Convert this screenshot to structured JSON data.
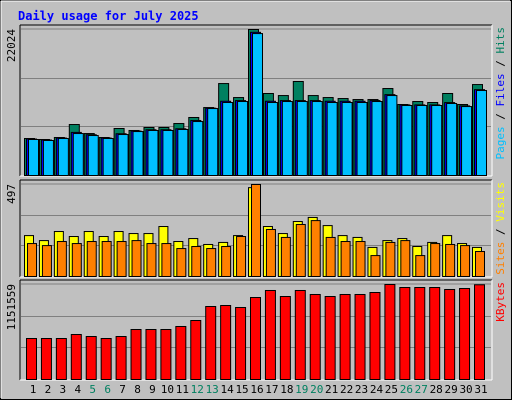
{
  "title": "Daily usage for July 2025",
  "separator": "/",
  "chart_data": [
    {
      "type": "bar",
      "ylim": [
        0,
        22024
      ],
      "yticks": [
        22024
      ],
      "series": [
        {
          "name": "Hits",
          "color": "#008060",
          "values": [
            5580,
            5430,
            5730,
            7690,
            6330,
            5730,
            7090,
            6790,
            7240,
            7240,
            7840,
            8750,
            10250,
            13870,
            11760,
            22024,
            12370,
            12060,
            14180,
            12060,
            11760,
            11610,
            11460,
            11460,
            13120,
            10710,
            11160,
            11010,
            12370,
            10710,
            13720
          ]
        },
        {
          "name": "Files",
          "color": "#0000ff",
          "values": [
            5500,
            5350,
            5650,
            6500,
            6150,
            5650,
            6300,
            6700,
            6900,
            6900,
            7050,
            8300,
            10150,
            11200,
            11300,
            21600,
            11200,
            11300,
            11300,
            11300,
            11200,
            11200,
            11200,
            11300,
            12200,
            10650,
            10650,
            10650,
            11000,
            10500,
            12950
          ]
        },
        {
          "name": "Pages",
          "color": "#00c0ff",
          "values": [
            5430,
            5280,
            5580,
            6330,
            6030,
            5580,
            6180,
            6630,
            6790,
            6790,
            6940,
            8140,
            10100,
            11010,
            11160,
            21410,
            11010,
            11160,
            11160,
            11160,
            11010,
            11010,
            11010,
            11160,
            12060,
            10560,
            10560,
            10560,
            10860,
            10400,
            12820
          ]
        }
      ]
    },
    {
      "type": "bar",
      "ylim": [
        0,
        497
      ],
      "yticks": [
        497
      ],
      "series": [
        {
          "name": "Visits",
          "color": "#ffff00",
          "values": [
            221,
            194,
            243,
            216,
            243,
            216,
            243,
            232,
            232,
            270,
            189,
            205,
            173,
            184,
            221,
            480,
            270,
            232,
            297,
            319,
            275,
            221,
            211,
            157,
            194,
            205,
            162,
            184,
            221,
            178,
            157
          ]
        },
        {
          "name": "Sites",
          "color": "#ff8000",
          "values": [
            178,
            167,
            189,
            178,
            189,
            189,
            189,
            194,
            178,
            178,
            151,
            162,
            151,
            162,
            216,
            497,
            254,
            211,
            281,
            302,
            211,
            189,
            189,
            113,
            184,
            194,
            113,
            178,
            173,
            167,
            135
          ]
        }
      ]
    },
    {
      "type": "bar",
      "ylim": [
        0,
        1151559
      ],
      "yticks": [
        1151559
      ],
      "categories": [
        "1",
        "2",
        "3",
        "4",
        "5",
        "6",
        "7",
        "8",
        "9",
        "10",
        "11",
        "12",
        "13",
        "14",
        "15",
        "16",
        "17",
        "18",
        "19",
        "20",
        "21",
        "22",
        "23",
        "24",
        "25",
        "26",
        "27",
        "28",
        "29",
        "30",
        "31"
      ],
      "weekend": [
        4,
        5,
        11,
        12,
        18,
        19,
        25,
        26
      ],
      "weekend_color": "#008060",
      "series": [
        {
          "name": "KBytes",
          "color": "#ff0000",
          "values": [
            497000,
            497000,
            497000,
            545500,
            521200,
            497000,
            521200,
            606100,
            606100,
            606100,
            642500,
            715200,
            884900,
            897000,
            872800,
            994000,
            1078900,
            1006100,
            1078900,
            1030400,
            1006100,
            1030400,
            1030400,
            1054600,
            1151559,
            1115200,
            1115200,
            1115200,
            1091000,
            1103100,
            1148000
          ]
        }
      ]
    }
  ]
}
